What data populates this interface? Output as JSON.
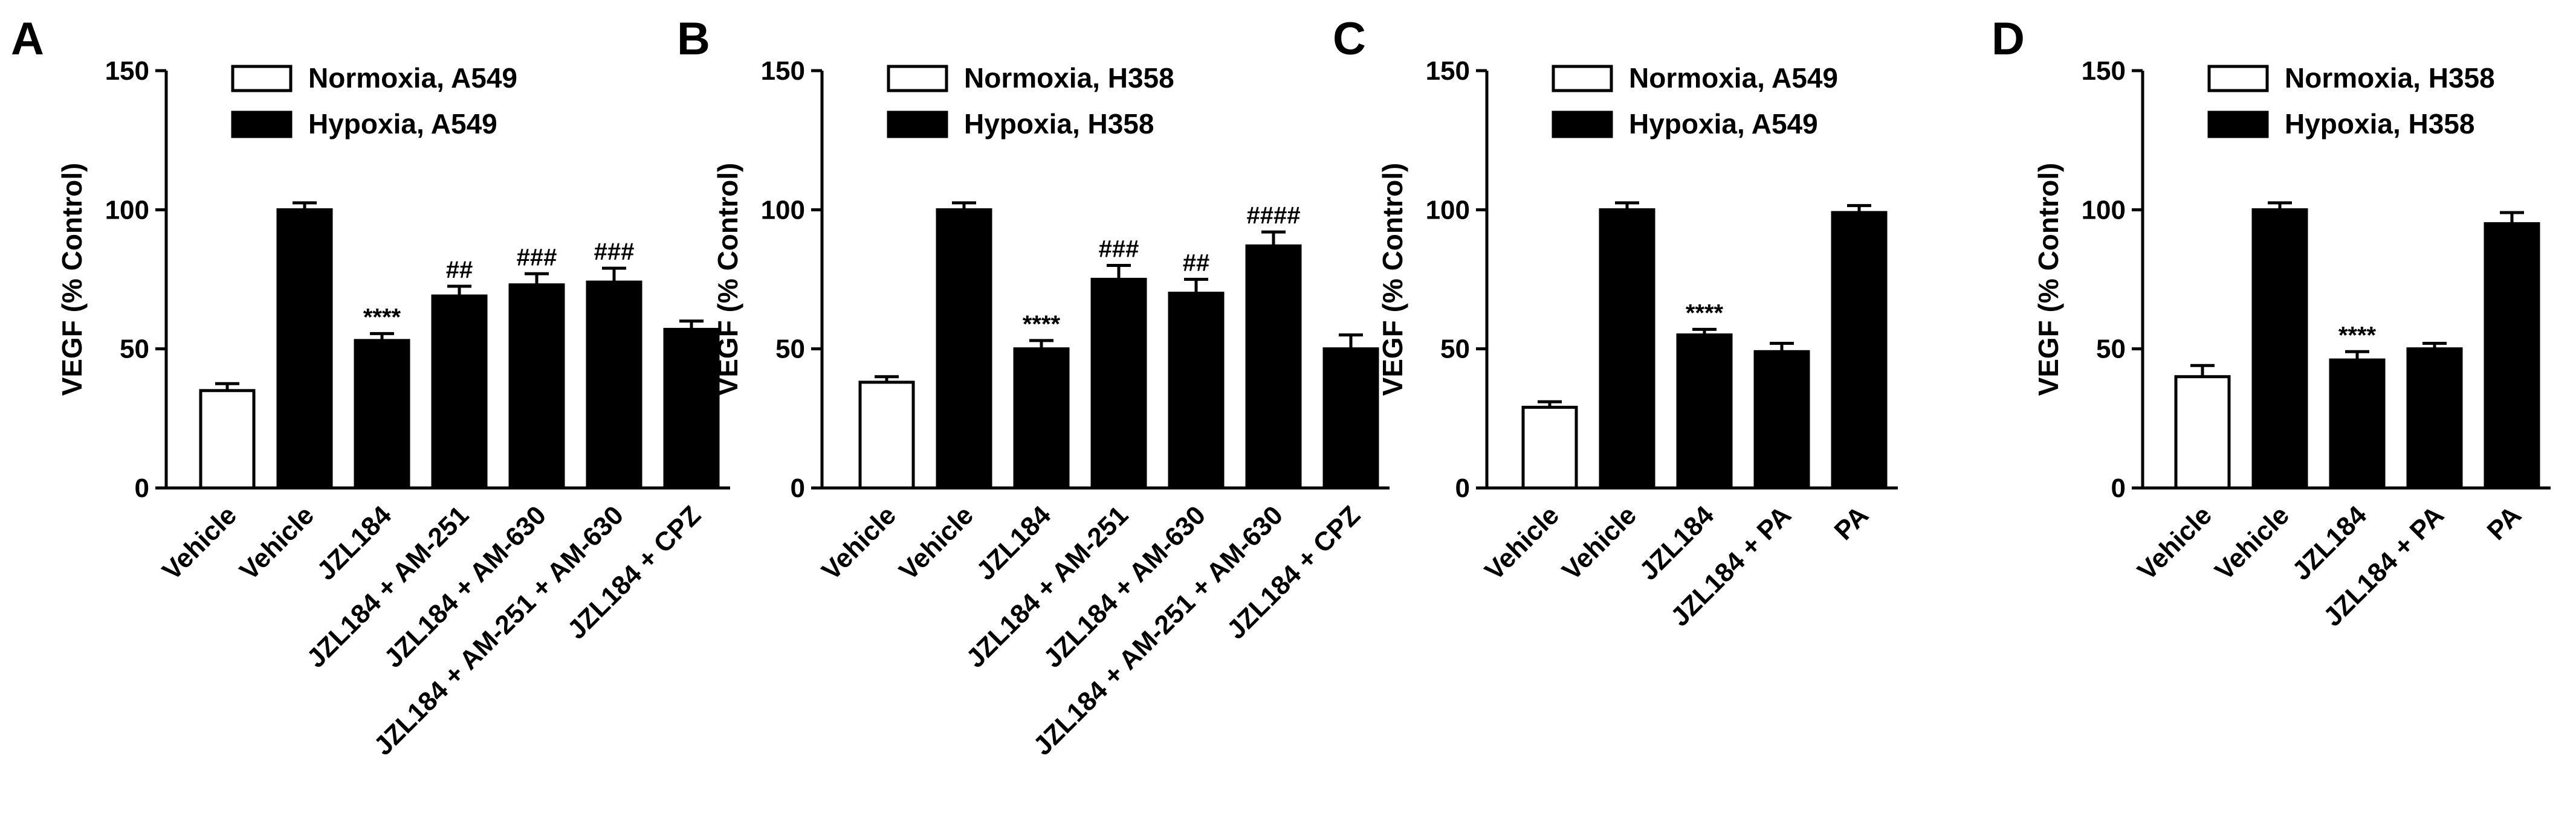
{
  "chart_data": [
    {
      "type": "bar",
      "panel_label": "A",
      "ylabel": "VEGF (% Control)",
      "ylim": [
        0,
        150
      ],
      "yticks": [
        0,
        50,
        100,
        150
      ],
      "categories": [
        "Vehicle",
        "Vehicle",
        "JZL184",
        "JZL184 + AM-251",
        "JZL184 + AM-630",
        "JZL184 + AM-251 + AM-630",
        "JZL184 + CPZ"
      ],
      "values": [
        35,
        100,
        53,
        69,
        73,
        74,
        57
      ],
      "errors": [
        2.5,
        2.5,
        2.5,
        3.5,
        4,
        5,
        3
      ],
      "fills": [
        "white",
        "black",
        "black",
        "black",
        "black",
        "black",
        "black"
      ],
      "annotations": [
        "",
        "",
        "****",
        "##",
        "###",
        "###",
        ""
      ],
      "legend": [
        {
          "label": "Normoxia, A549",
          "fill": "white"
        },
        {
          "label": "Hypoxia, A549",
          "fill": "black"
        }
      ]
    },
    {
      "type": "bar",
      "panel_label": "B",
      "ylabel": "VEGF (% Control)",
      "ylim": [
        0,
        150
      ],
      "yticks": [
        0,
        50,
        100,
        150
      ],
      "categories": [
        "Vehicle",
        "Vehicle",
        "JZL184",
        "JZL184 + AM-251",
        "JZL184 + AM-630",
        "JZL184 + AM-251 + AM-630",
        "JZL184 + CPZ"
      ],
      "values": [
        38,
        100,
        50,
        75,
        70,
        87,
        50
      ],
      "errors": [
        2,
        2.5,
        3,
        5,
        5,
        5,
        5
      ],
      "fills": [
        "white",
        "black",
        "black",
        "black",
        "black",
        "black",
        "black"
      ],
      "annotations": [
        "",
        "",
        "****",
        "###",
        "##",
        "####",
        ""
      ],
      "legend": [
        {
          "label": "Normoxia, H358",
          "fill": "white"
        },
        {
          "label": "Hypoxia, H358",
          "fill": "black"
        }
      ]
    },
    {
      "type": "bar",
      "panel_label": "C",
      "ylabel": "VEGF (% Control)",
      "ylim": [
        0,
        150
      ],
      "yticks": [
        0,
        50,
        100,
        150
      ],
      "categories": [
        "Vehicle",
        "Vehicle",
        "JZL184",
        "JZL184 + PA",
        "PA"
      ],
      "values": [
        29,
        100,
        55,
        49,
        99
      ],
      "errors": [
        2,
        2.5,
        2,
        3,
        2.5
      ],
      "fills": [
        "white",
        "black",
        "black",
        "black",
        "black"
      ],
      "annotations": [
        "",
        "",
        "****",
        "",
        ""
      ],
      "legend": [
        {
          "label": "Normoxia, A549",
          "fill": "white"
        },
        {
          "label": "Hypoxia, A549",
          "fill": "black"
        }
      ]
    },
    {
      "type": "bar",
      "panel_label": "D",
      "ylabel": "VEGF (% Control)",
      "ylim": [
        0,
        150
      ],
      "yticks": [
        0,
        50,
        100,
        150
      ],
      "categories": [
        "Vehicle",
        "Vehicle",
        "JZL184",
        "JZL184 + PA",
        "PA"
      ],
      "values": [
        40,
        100,
        46,
        50,
        95
      ],
      "errors": [
        4,
        2.5,
        3,
        2,
        4
      ],
      "fills": [
        "white",
        "black",
        "black",
        "black",
        "black"
      ],
      "annotations": [
        "",
        "",
        "****",
        "",
        ""
      ],
      "legend": [
        {
          "label": "Normoxia, H358",
          "fill": "white"
        },
        {
          "label": "Hypoxia, H358",
          "fill": "black"
        }
      ]
    }
  ]
}
